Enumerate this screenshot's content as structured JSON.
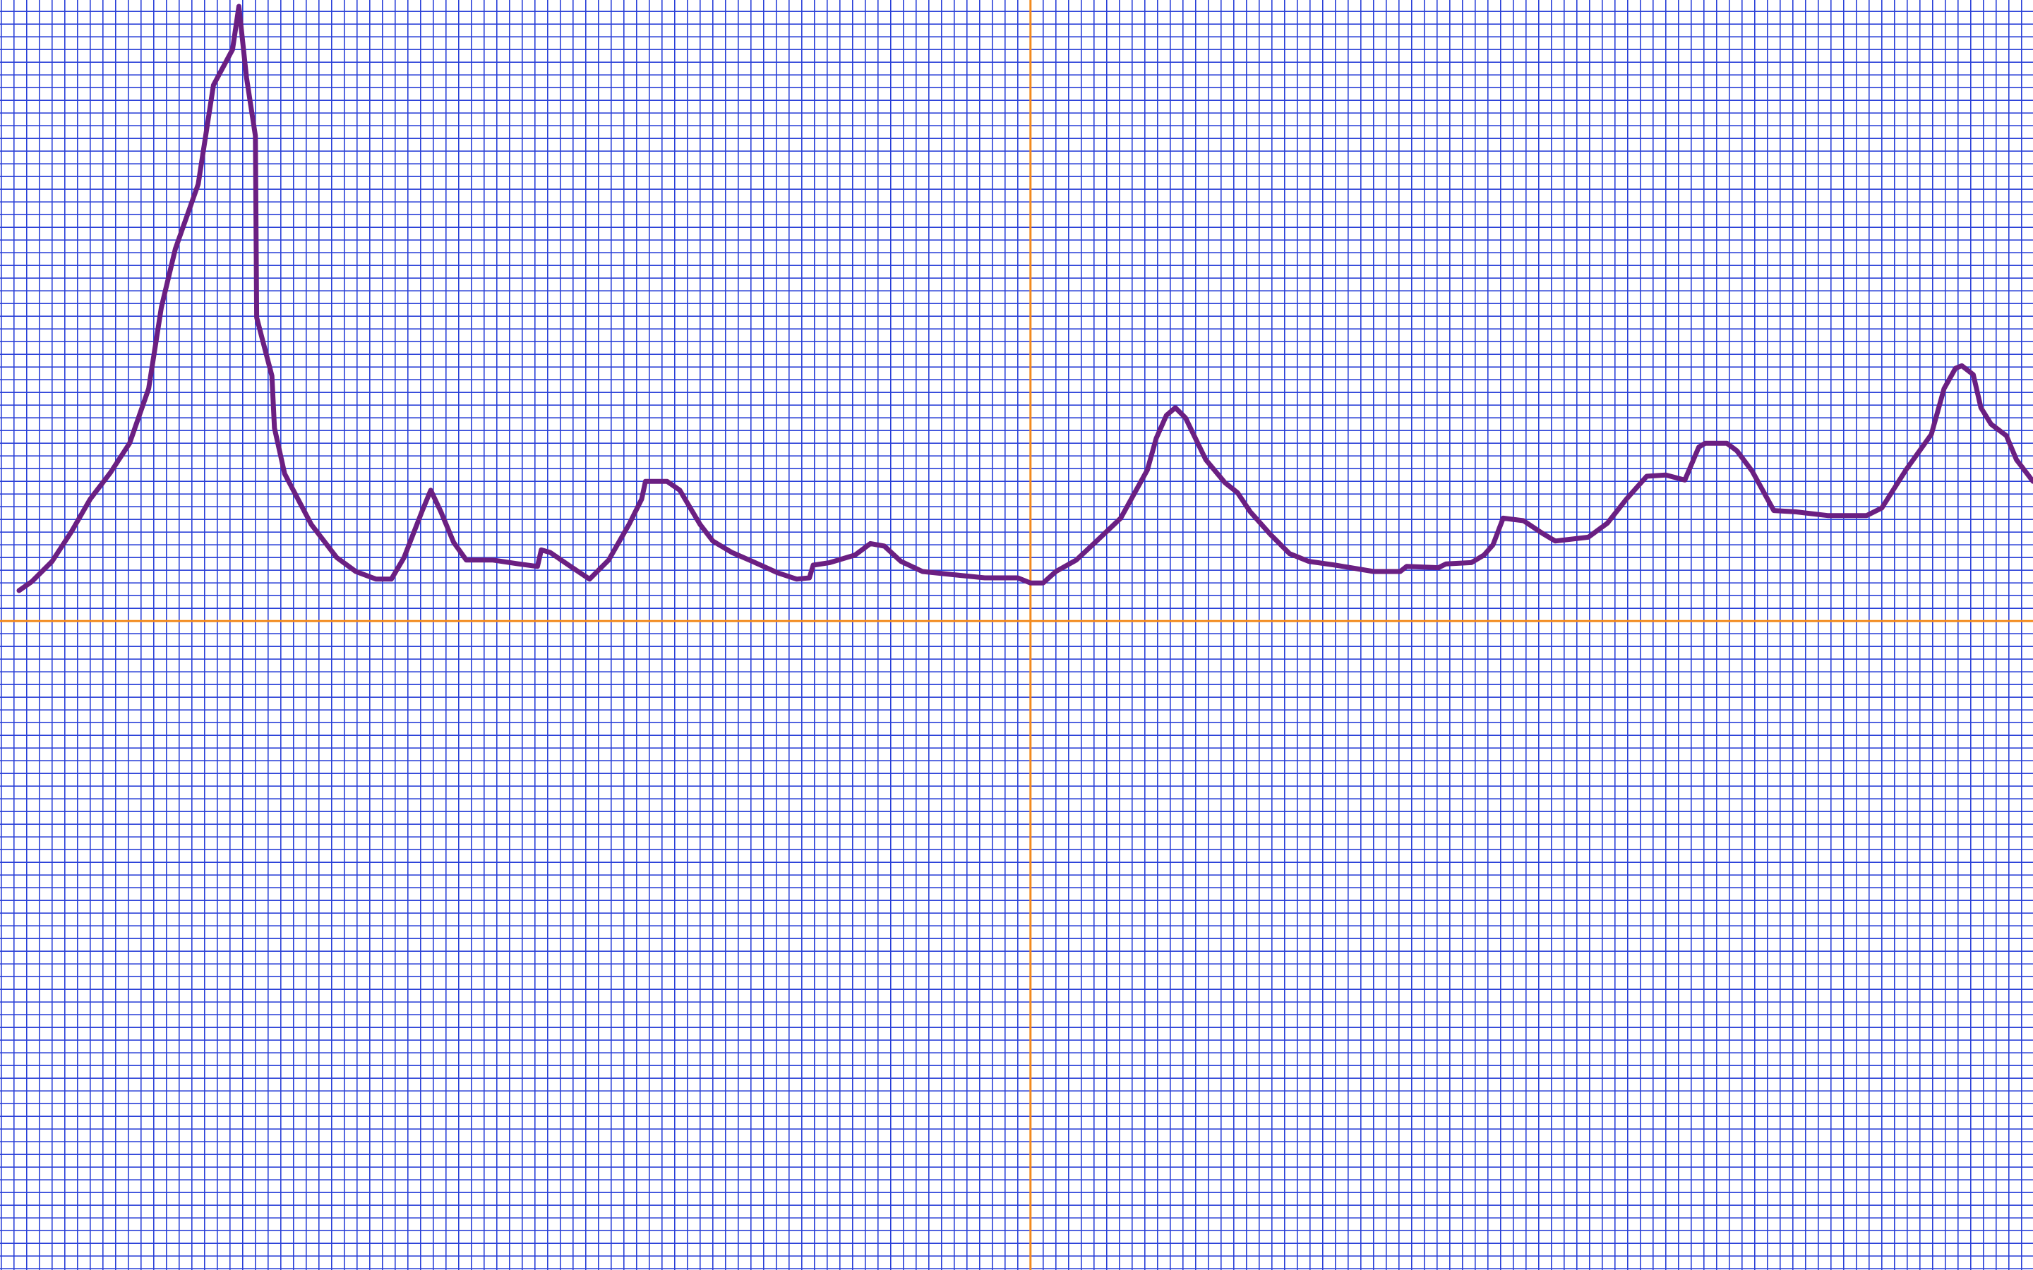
{
  "chart_data": {
    "type": "line",
    "background": "#ffffff",
    "grid": true,
    "grid_color": "#2a40d8",
    "axis_color": "#f28a1e",
    "xlim": [
      -81.1,
      78.9
    ],
    "ylim": [
      -51.1,
      48.9
    ],
    "xticks": [
      -81,
      -80,
      -79,
      -78,
      -77,
      -76,
      -75,
      -74,
      -73,
      -72,
      -71,
      -70,
      -69,
      -68,
      -67,
      -66,
      -65,
      -64,
      -63,
      -62,
      -61,
      -60,
      -59,
      -58,
      -57,
      -56,
      -55,
      -54,
      -53,
      -52,
      -51,
      -50,
      -49,
      -48,
      -47,
      -46,
      -45,
      -44,
      -43,
      -42,
      -41,
      -40,
      -39,
      -38,
      -37,
      -36,
      -35,
      -34,
      -33,
      -32,
      -31,
      -30,
      -29,
      -28,
      -27,
      -26,
      -25,
      -24,
      -23,
      -22,
      -21,
      -20,
      -19,
      -18,
      -17,
      -16,
      -15,
      -14,
      -13,
      -12,
      -11,
      -10,
      -9,
      -8,
      -7,
      -6,
      -5,
      -4,
      -3,
      -2,
      -1,
      0,
      1,
      2,
      3,
      4,
      5,
      6,
      7,
      8,
      9,
      10,
      11,
      12,
      13,
      14,
      15,
      16,
      17,
      18,
      19,
      20,
      21,
      22,
      23,
      24,
      25,
      26,
      27,
      28,
      29,
      30,
      31,
      32,
      33,
      34,
      35,
      36,
      37,
      38,
      39,
      40,
      41,
      42,
      43,
      44,
      45,
      46,
      47,
      48,
      49,
      50,
      51,
      52,
      53,
      54,
      55,
      56,
      57,
      58,
      59,
      60,
      61,
      62,
      63,
      64,
      65,
      66,
      67,
      68,
      69,
      70,
      71,
      72,
      73,
      74,
      75,
      76,
      77,
      78
    ],
    "yticks": [
      -51,
      -50,
      -49,
      -48,
      -47,
      -46,
      -45,
      -44,
      -43,
      -42,
      -41,
      -40,
      -39,
      -38,
      -37,
      -36,
      -35,
      -34,
      -33,
      -32,
      -31,
      -30,
      -29,
      -28,
      -27,
      -26,
      -25,
      -24,
      -23,
      -22,
      -21,
      -20,
      -19,
      -18,
      -17,
      -16,
      -15,
      -14,
      -13,
      -12,
      -11,
      -10,
      -9,
      -8,
      -7,
      -6,
      -5,
      -4,
      -3,
      -2,
      -1,
      0,
      1,
      2,
      3,
      4,
      5,
      6,
      7,
      8,
      9,
      10,
      11,
      12,
      13,
      14,
      15,
      16,
      17,
      18,
      19,
      20,
      21,
      22,
      23,
      24,
      25,
      26,
      27,
      28,
      29,
      30,
      31,
      32,
      33,
      34,
      35,
      36,
      37,
      38,
      39,
      40,
      41,
      42,
      43,
      44,
      45,
      46,
      47,
      48
    ],
    "series": [
      {
        "color": "#6b1f82",
        "x": [
          -79.6,
          -78.6,
          -77.0,
          -75.5,
          -74.0,
          -72.4,
          -70.9,
          -69.4,
          -68.4,
          -67.3,
          -65.5,
          -64.3,
          -62.8,
          -62.3,
          -61.7,
          -61.0,
          -60.9,
          -59.7,
          -59.5,
          -58.7,
          -56.6,
          -54.6,
          -53.1,
          -51.5,
          -50.3,
          -49.3,
          -47.9,
          -47.2,
          -46.4,
          -45.4,
          -44.4,
          -42.3,
          -40.3,
          -38.8,
          -38.5,
          -37.8,
          -36.2,
          -34.7,
          -33.2,
          -31.6,
          -30.6,
          -30.3,
          -28.6,
          -27.6,
          -26.0,
          -25.0,
          -23.5,
          -21.9,
          -19.9,
          -18.4,
          -17.4,
          -17.1,
          -15.8,
          -13.8,
          -12.6,
          -11.5,
          -10.2,
          -8.5,
          -5.6,
          -3.6,
          -1.0,
          0.0,
          1.0,
          2.0,
          3.6,
          5.1,
          7.1,
          9.2,
          9.9,
          10.7,
          11.4,
          12.2,
          13.8,
          15.3,
          16.3,
          17.3,
          18.9,
          20.4,
          21.9,
          24.0,
          27.0,
          29.1,
          29.6,
          32.1,
          32.7,
          34.7,
          35.7,
          36.4,
          37.2,
          38.8,
          40.3,
          41.3,
          43.9,
          45.4,
          46.9,
          48.5,
          50.0,
          51.5,
          52.6,
          53.1,
          54.8,
          55.6,
          56.8,
          58.5,
          60.2,
          62.8,
          65.8,
          67.0,
          68.9,
          70.9,
          71.9,
          72.8,
          73.3,
          74.2,
          74.8,
          75.6,
          76.8,
          77.6,
          78.9
        ],
        "values": [
          2.4,
          3.1,
          4.7,
          7.0,
          9.6,
          11.7,
          14.0,
          18.3,
          24.7,
          29.3,
          34.4,
          42.2,
          45.0,
          48.4,
          42.8,
          38.2,
          23.9,
          19.3,
          15.2,
          11.6,
          7.6,
          5.0,
          3.9,
          3.3,
          3.3,
          5.0,
          8.6,
          10.3,
          8.6,
          6.2,
          4.8,
          4.8,
          4.5,
          4.3,
          5.6,
          5.4,
          4.3,
          3.3,
          4.8,
          7.6,
          9.6,
          11.0,
          11.0,
          10.3,
          7.6,
          6.3,
          5.4,
          4.7,
          3.8,
          3.3,
          3.4,
          4.4,
          4.6,
          5.2,
          6.1,
          5.9,
          4.7,
          3.9,
          3.6,
          3.4,
          3.4,
          3.0,
          3.0,
          3.9,
          4.8,
          6.2,
          8.1,
          11.9,
          14.4,
          16.2,
          16.8,
          16.0,
          12.7,
          10.9,
          10.1,
          8.6,
          6.8,
          5.3,
          4.7,
          4.4,
          3.9,
          3.9,
          4.3,
          4.2,
          4.5,
          4.6,
          5.2,
          6.0,
          8.1,
          7.9,
          6.9,
          6.3,
          6.6,
          7.7,
          9.6,
          11.4,
          11.5,
          11.1,
          13.7,
          14.0,
          14.0,
          13.4,
          11.8,
          8.7,
          8.6,
          8.3,
          8.3,
          8.9,
          11.9,
          14.7,
          18.3,
          19.9,
          20.1,
          19.4,
          16.8,
          15.5,
          14.6,
          12.7,
          11.0
        ]
      }
    ]
  }
}
